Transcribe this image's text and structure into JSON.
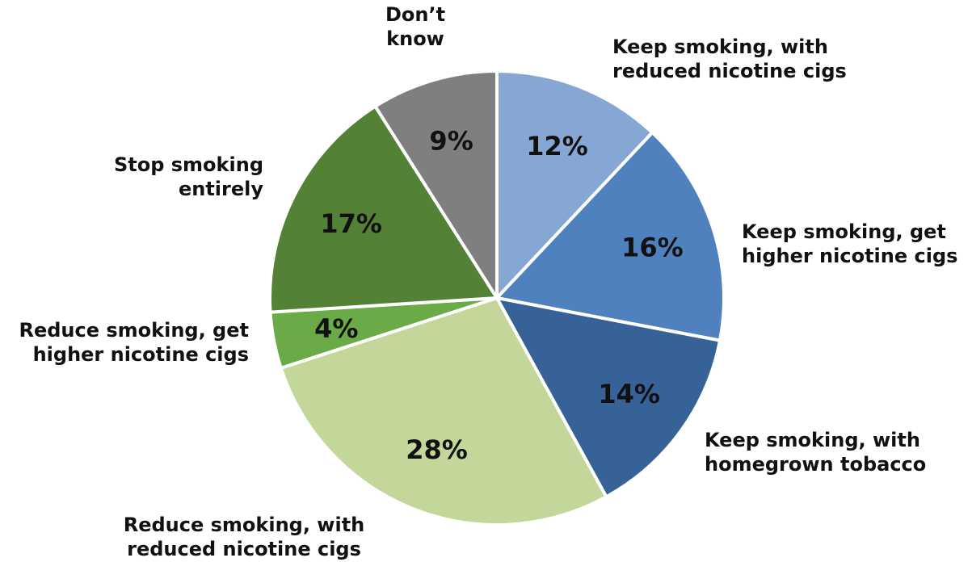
{
  "chart_data": {
    "type": "pie",
    "start_angle_deg": 0,
    "direction": "clockwise",
    "slices": [
      {
        "label": "Keep smoking, with reduced nicotine cigs",
        "value": 12,
        "display": "12%",
        "color": "#86A7D3"
      },
      {
        "label": "Keep smoking, get higher nicotine cigs",
        "value": 16,
        "display": "16%",
        "color": "#4E81BD"
      },
      {
        "label": "Keep smoking, with homegrown tobacco",
        "value": 14,
        "display": "14%",
        "color": "#376298"
      },
      {
        "label": "Reduce smoking, with reduced nicotine cigs",
        "value": 28,
        "display": "28%",
        "color": "#C4D79B"
      },
      {
        "label": "Reduce smoking, get higher nicotine cigs",
        "value": 4,
        "display": "4%",
        "color": "#6AAA47"
      },
      {
        "label": "Stop smoking entirely",
        "value": 17,
        "display": "17%",
        "color": "#538135"
      },
      {
        "label": "Don’t know",
        "value": 9,
        "display": "9%",
        "color": "#7F7F7F"
      }
    ]
  }
}
